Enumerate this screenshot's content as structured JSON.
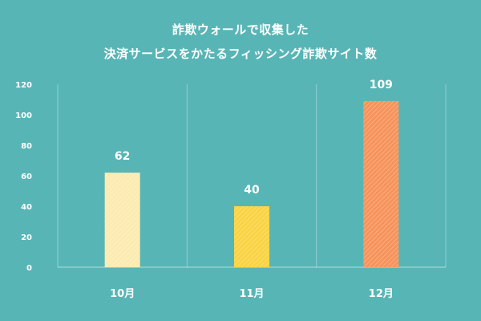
{
  "chart_data": {
    "type": "bar",
    "title": [
      "詐欺ウォールで収集した",
      "決済サービスをかたるフィッシング詐欺サイト数"
    ],
    "categories": [
      "10月",
      "11月",
      "12月"
    ],
    "values": [
      62,
      40,
      109
    ],
    "data_labels": [
      "62",
      "40",
      "109"
    ],
    "bar_colors": [
      "#fcebb0",
      "#f9d342",
      "#f6935a"
    ],
    "ylim": [
      0,
      120
    ],
    "yticks": [
      0,
      20,
      40,
      60,
      80,
      100,
      120
    ],
    "ytick_labels": [
      "0",
      "20",
      "40",
      "60",
      "80",
      "100",
      "120"
    ],
    "grid": true,
    "xlabel": "",
    "ylabel": ""
  }
}
